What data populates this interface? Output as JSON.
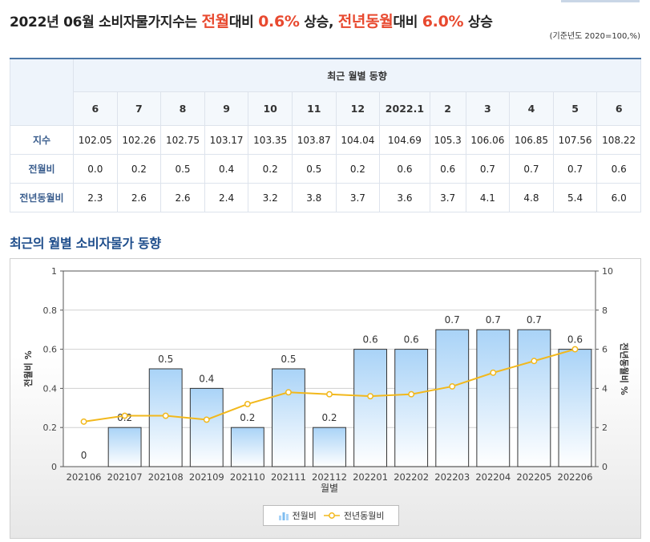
{
  "headline": {
    "part1": "2022년 06월",
    "part2": " 소비자물가지수는 ",
    "part3": "전월",
    "part4": "대비 ",
    "part5": "0.6%",
    "part6": " 상승, ",
    "part7": "전년동월",
    "part8": "대비 ",
    "part9": "6.0%",
    "part10": " 상승"
  },
  "basis_note": "(기준년도 2020=100,%)",
  "table": {
    "group_header": "최근 월별 동향",
    "months": [
      "6",
      "7",
      "8",
      "9",
      "10",
      "11",
      "12",
      "2022.1",
      "2",
      "3",
      "4",
      "5",
      "6"
    ],
    "rows": [
      {
        "label": "지수",
        "values": [
          "102.05",
          "102.26",
          "102.75",
          "103.17",
          "103.35",
          "103.87",
          "104.04",
          "104.69",
          "105.3",
          "106.06",
          "106.85",
          "107.56",
          "108.22"
        ]
      },
      {
        "label": "전월비",
        "values": [
          "0.0",
          "0.2",
          "0.5",
          "0.4",
          "0.2",
          "0.5",
          "0.2",
          "0.6",
          "0.6",
          "0.7",
          "0.7",
          "0.7",
          "0.6"
        ]
      },
      {
        "label": "전년동월비",
        "values": [
          "2.3",
          "2.6",
          "2.6",
          "2.4",
          "3.2",
          "3.8",
          "3.7",
          "3.6",
          "3.7",
          "4.1",
          "4.8",
          "5.4",
          "6.0"
        ]
      }
    ]
  },
  "chart_title": "최근의 월별 소비자물가 동향",
  "chart_data": {
    "type": "bar",
    "categories": [
      "202106",
      "202107",
      "202108",
      "202109",
      "202110",
      "202111",
      "202112",
      "202201",
      "202202",
      "202203",
      "202204",
      "202205",
      "202206"
    ],
    "series": [
      {
        "name": "전월비",
        "type": "bar",
        "axis": "left",
        "values": [
          0,
          0.2,
          0.5,
          0.4,
          0.2,
          0.5,
          0.2,
          0.6,
          0.6,
          0.7,
          0.7,
          0.7,
          0.6
        ],
        "labels": [
          "0",
          "0.2",
          "0.5",
          "0.4",
          "0.2",
          "0.5",
          "0.2",
          "0.6",
          "0.6",
          "0.7",
          "0.7",
          "0.7",
          "0.6"
        ]
      },
      {
        "name": "전년동월비",
        "type": "line",
        "axis": "right",
        "values": [
          2.3,
          2.6,
          2.6,
          2.4,
          3.2,
          3.8,
          3.7,
          3.6,
          3.7,
          4.1,
          4.8,
          5.4,
          6.0
        ]
      }
    ],
    "xlabel": "월별",
    "ylabel_left": "전월비 %",
    "ylabel_right": "전년동월비 %",
    "ylim_left": [
      0,
      1
    ],
    "ylim_right": [
      0,
      10
    ],
    "yticks_left": [
      "0",
      "0.2",
      "0.4",
      "0.6",
      "0.8",
      "1"
    ],
    "yticks_right": [
      "0",
      "2",
      "4",
      "6",
      "8",
      "10"
    ],
    "legend_position": "bottom",
    "colors": {
      "bar_top": "#a9d3f7",
      "bar_bottom": "#ffffff",
      "line": "#f2b81c",
      "marker_fill": "#ffffff"
    }
  }
}
